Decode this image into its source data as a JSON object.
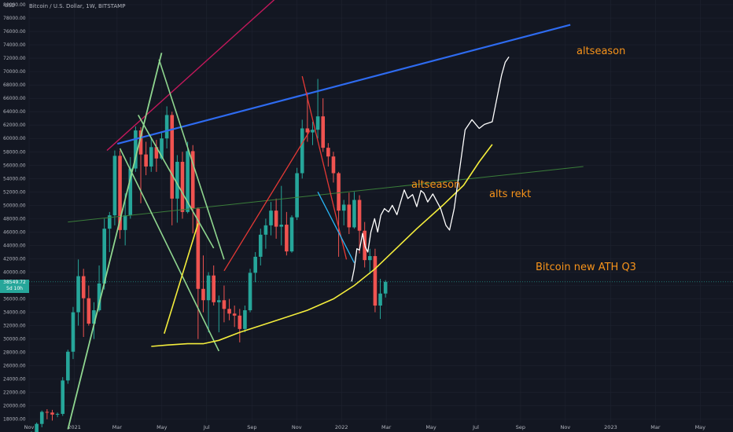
{
  "header": {
    "title": "Bitcoin / U.S. Dollar, 1W, BITSTAMP",
    "unit": "USD"
  },
  "price_badge": {
    "price": "38549.72",
    "countdown": "5d 10h"
  },
  "annotations": {
    "altseason_top": "altseason",
    "altseason_mid": "altseason",
    "alts_rekt": "alts rekt",
    "bitcoin_ath": "Bitcoin new ATH Q3"
  },
  "colors": {
    "background": "#131722",
    "up": "#26a69a",
    "down": "#ef5350",
    "grid": "#1f2330",
    "text": "#b2b5be",
    "annotation": "#f7931a",
    "blue_trend": "#2e6bf0",
    "yellow_curve": "#f4ed3c",
    "green_line": "#3a7d3a",
    "light_green": "#8fd68f",
    "magenta": "#c2185b",
    "red_line": "#e53935",
    "cyan_line": "#29b6f6",
    "white_path": "#ffffff"
  },
  "chart_data": {
    "type": "candlestick",
    "title": "Bitcoin / U.S. Dollar, 1W, BITSTAMP",
    "ylabel": "USD",
    "ylim": [
      17500,
      80000
    ],
    "y_ticks": [
      18000,
      20000,
      22000,
      24000,
      26000,
      28000,
      30000,
      32000,
      34000,
      36000,
      38000,
      40000,
      42000,
      44000,
      46000,
      48000,
      50000,
      52000,
      54000,
      56000,
      58000,
      60000,
      62000,
      64000,
      66000,
      68000,
      70000,
      72000,
      74000,
      76000,
      78000,
      80000
    ],
    "x_ticks": [
      "Nov",
      "2021",
      "Mar",
      "May",
      "Jul",
      "Sep",
      "Nov",
      "2022",
      "Mar",
      "May",
      "Jul",
      "Sep",
      "Nov",
      "2023",
      "Mar",
      "May"
    ],
    "x_tick_weeks": [
      0,
      8.7,
      16.9,
      25.5,
      34.1,
      42.8,
      51.4,
      60.0,
      68.6,
      77.2,
      85.8,
      94.4,
      103.0,
      111.7,
      120.3,
      128.9
    ],
    "current_price": 38549.72,
    "candles": [
      [
        15500,
        16200,
        15000,
        15800
      ],
      [
        15800,
        17500,
        15700,
        17300
      ],
      [
        17300,
        19300,
        16800,
        19100
      ],
      [
        19100,
        19500,
        18000,
        19000
      ],
      [
        19000,
        19400,
        17800,
        18700
      ],
      [
        18700,
        19000,
        18300,
        18800
      ],
      [
        18800,
        24300,
        18500,
        23800
      ],
      [
        23800,
        28400,
        23300,
        28100
      ],
      [
        28100,
        34800,
        27000,
        34000
      ],
      [
        34000,
        41900,
        32000,
        39400
      ],
      [
        39400,
        40500,
        30300,
        36100
      ],
      [
        36100,
        38000,
        32000,
        32300
      ],
      [
        32300,
        35500,
        30000,
        34300
      ],
      [
        34300,
        41000,
        34100,
        38300
      ],
      [
        38300,
        48000,
        37400,
        46500
      ],
      [
        46500,
        49000,
        43000,
        48500
      ],
      [
        48500,
        58200,
        47000,
        57400
      ],
      [
        57400,
        58200,
        45000,
        46300
      ],
      [
        46300,
        51800,
        44000,
        48500
      ],
      [
        48500,
        57200,
        48000,
        55500
      ],
      [
        55500,
        61800,
        55000,
        61200
      ],
      [
        61200,
        61700,
        50300,
        57600
      ],
      [
        57600,
        59500,
        54500,
        55800
      ],
      [
        55800,
        60200,
        55000,
        58700
      ],
      [
        58700,
        59800,
        55000,
        57000
      ],
      [
        57000,
        60800,
        56800,
        60000
      ],
      [
        60000,
        64800,
        58500,
        63500
      ],
      [
        63500,
        64000,
        47000,
        51000
      ],
      [
        51000,
        57500,
        47400,
        56500
      ],
      [
        56500,
        58000,
        48000,
        49000
      ],
      [
        49000,
        59500,
        48800,
        58100
      ],
      [
        58100,
        59000,
        45800,
        49500
      ],
      [
        49500,
        49700,
        30000,
        37500
      ],
      [
        37500,
        42500,
        34000,
        35800
      ],
      [
        35800,
        40000,
        31000,
        39500
      ],
      [
        39500,
        41000,
        35000,
        35500
      ],
      [
        35500,
        36500,
        31000,
        35800
      ],
      [
        35800,
        38000,
        32500,
        34500
      ],
      [
        34500,
        36000,
        32800,
        33800
      ],
      [
        33800,
        35000,
        31800,
        33500
      ],
      [
        33500,
        34500,
        29500,
        31500
      ],
      [
        31500,
        35000,
        31000,
        34300
      ],
      [
        34300,
        40500,
        34000,
        39900
      ],
      [
        39900,
        43000,
        38500,
        42300
      ],
      [
        42300,
        46500,
        41000,
        45600
      ],
      [
        45600,
        48000,
        43500,
        47000
      ],
      [
        47000,
        50500,
        45500,
        49200
      ],
      [
        49200,
        51000,
        45000,
        46800
      ],
      [
        46800,
        52900,
        44000,
        47100
      ],
      [
        47100,
        49000,
        42500,
        43100
      ],
      [
        43100,
        48500,
        42900,
        48200
      ],
      [
        48200,
        55600,
        47800,
        54800
      ],
      [
        54800,
        62800,
        54000,
        61500
      ],
      [
        61500,
        66900,
        59500,
        60900
      ],
      [
        60900,
        62500,
        59000,
        61300
      ],
      [
        61300,
        68900,
        60000,
        63300
      ],
      [
        63300,
        66000,
        58000,
        58600
      ],
      [
        58600,
        59300,
        55800,
        57300
      ],
      [
        57300,
        58000,
        53400,
        54800
      ],
      [
        54800,
        55000,
        42300,
        49200
      ],
      [
        49200,
        50800,
        47000,
        50100
      ],
      [
        50100,
        51900,
        45700,
        46700
      ],
      [
        46700,
        52000,
        46500,
        50800
      ],
      [
        50800,
        51500,
        42800,
        46200
      ],
      [
        46200,
        47500,
        40700,
        41800
      ],
      [
        41800,
        43500,
        39700,
        42400
      ],
      [
        42400,
        43500,
        34000,
        35000
      ],
      [
        35000,
        39000,
        33000,
        36800
      ],
      [
        36800,
        38800,
        36200,
        38550
      ]
    ],
    "trend_lines": [
      {
        "name": "Blue resistance",
        "points": [
          [
            16.5,
            59200
          ],
          [
            103.5,
            77000
          ]
        ]
      },
      {
        "name": "Green long-term line",
        "points": [
          [
            7,
            47500
          ],
          [
            106,
            55800
          ]
        ]
      },
      {
        "name": "Magenta steep line",
        "points": [
          [
            14.5,
            58200
          ],
          [
            47,
            81000
          ]
        ]
      },
      {
        "name": "Light green rising line",
        "points": [
          [
            7,
            16500
          ],
          [
            25,
            72800
          ]
        ]
      },
      {
        "name": "Light green falling line A",
        "points": [
          [
            17,
            58500
          ],
          [
            36,
            28200
          ]
        ]
      },
      {
        "name": "Light green falling line B",
        "points": [
          [
            20.5,
            63500
          ],
          [
            35,
            43600
          ]
        ]
      },
      {
        "name": "Light green falling line C",
        "points": [
          [
            24.5,
            71800
          ],
          [
            37,
            41900
          ]
        ]
      },
      {
        "name": "Yellow short line",
        "points": [
          [
            25.5,
            30800
          ],
          [
            32,
            47300
          ]
        ]
      },
      {
        "name": "Red rising line",
        "points": [
          [
            37,
            40200
          ],
          [
            53.5,
            61200
          ]
        ]
      },
      {
        "name": "Red falling line",
        "points": [
          [
            52,
            69300
          ],
          [
            60.5,
            41900
          ]
        ]
      },
      {
        "name": "Cyan falling line",
        "points": [
          [
            55,
            52000
          ],
          [
            62,
            41400
          ]
        ]
      }
    ],
    "yellow_curve": [
      [
        23,
        28900
      ],
      [
        26,
        29100
      ],
      [
        30,
        29300
      ],
      [
        33,
        29300
      ],
      [
        36,
        29800
      ],
      [
        40,
        31000
      ],
      [
        46,
        32500
      ],
      [
        53,
        34300
      ],
      [
        58,
        36000
      ],
      [
        62,
        38000
      ],
      [
        66,
        40500
      ],
      [
        70,
        43500
      ],
      [
        74,
        46500
      ],
      [
        79,
        50000
      ],
      [
        83,
        53000
      ],
      [
        86,
        56500
      ],
      [
        88.5,
        59100
      ]
    ],
    "projection_path": [
      [
        61.5,
        38600
      ],
      [
        62,
        40500
      ],
      [
        62.5,
        43500
      ],
      [
        63,
        43300
      ],
      [
        63.6,
        45800
      ],
      [
        64.1,
        43800
      ],
      [
        64.6,
        43000
      ],
      [
        65.2,
        46000
      ],
      [
        65.9,
        48000
      ],
      [
        66.5,
        46000
      ],
      [
        67.1,
        48500
      ],
      [
        67.8,
        49500
      ],
      [
        68.6,
        49000
      ],
      [
        69.3,
        50000
      ],
      [
        70.2,
        48600
      ],
      [
        70.9,
        50500
      ],
      [
        71.6,
        52300
      ],
      [
        72.3,
        51000
      ],
      [
        73.2,
        51600
      ],
      [
        74,
        49800
      ],
      [
        74.8,
        52200
      ],
      [
        75.4,
        51800
      ],
      [
        76.1,
        50500
      ],
      [
        77.1,
        51700
      ],
      [
        78.6,
        49500
      ],
      [
        79.6,
        47000
      ],
      [
        80.3,
        46300
      ],
      [
        81.2,
        49500
      ],
      [
        81.9,
        53500
      ],
      [
        82.7,
        58000
      ],
      [
        83.3,
        61300
      ],
      [
        84.6,
        62800
      ],
      [
        86,
        61500
      ],
      [
        87,
        62100
      ],
      [
        88.5,
        62500
      ],
      [
        89.4,
        66000
      ],
      [
        90.3,
        69500
      ],
      [
        91,
        71400
      ],
      [
        91.7,
        72200
      ]
    ],
    "annotations": [
      "altseason",
      "altseason",
      "alts rekt",
      "Bitcoin new ATH Q3"
    ]
  }
}
